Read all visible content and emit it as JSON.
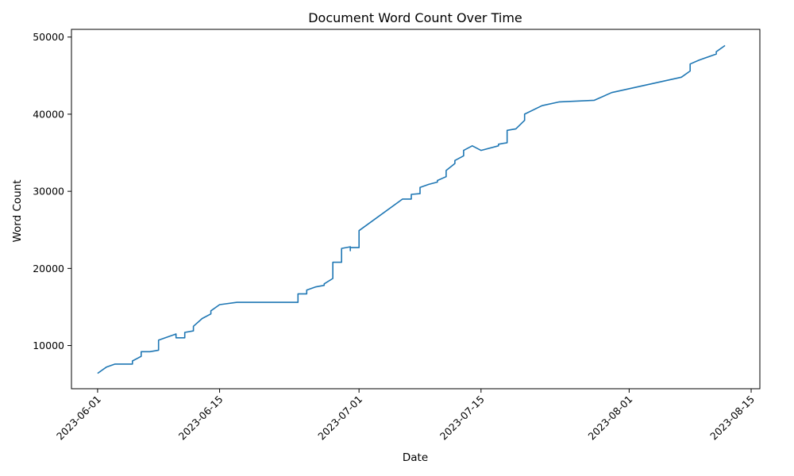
{
  "chart_data": {
    "type": "line",
    "title": "Document Word Count Over Time",
    "xlabel": "Date",
    "ylabel": "Word Count",
    "x_axis_type": "date",
    "xlim": [
      "2023-05-29",
      "2023-08-16"
    ],
    "ylim": [
      4400,
      51000
    ],
    "x_ticks": [
      "2023-06-01",
      "2023-06-15",
      "2023-07-01",
      "2023-07-15",
      "2023-08-01",
      "2023-08-15"
    ],
    "y_ticks": [
      10000,
      20000,
      30000,
      40000,
      50000
    ],
    "y_tick_labels": [
      "10000",
      "20000",
      "30000",
      "40000",
      "50000"
    ],
    "grid": false,
    "legend": "none",
    "series": [
      {
        "color": "#1f77b4",
        "x": [
          "2023-06-01",
          "2023-06-02",
          "2023-06-03",
          "2023-06-05",
          "2023-06-05",
          "2023-06-06",
          "2023-06-06",
          "2023-06-07",
          "2023-06-08",
          "2023-06-08",
          "2023-06-10",
          "2023-06-10",
          "2023-06-11",
          "2023-06-11",
          "2023-06-12",
          "2023-06-12",
          "2023-06-13",
          "2023-06-14",
          "2023-06-14",
          "2023-06-15",
          "2023-06-17",
          "2023-06-24",
          "2023-06-24",
          "2023-06-25",
          "2023-06-25",
          "2023-06-26",
          "2023-06-27",
          "2023-06-27",
          "2023-06-28",
          "2023-06-28",
          "2023-06-29",
          "2023-06-29",
          "2023-06-30",
          "2023-06-30",
          "2023-06-30",
          "2023-06-30",
          "2023-07-01",
          "2023-07-01",
          "2023-07-06",
          "2023-07-07",
          "2023-07-07",
          "2023-07-08",
          "2023-07-08",
          "2023-07-09",
          "2023-07-10",
          "2023-07-10",
          "2023-07-11",
          "2023-07-11",
          "2023-07-12",
          "2023-07-12",
          "2023-07-13",
          "2023-07-13",
          "2023-07-14",
          "2023-07-15",
          "2023-07-17",
          "2023-07-17",
          "2023-07-18",
          "2023-07-18",
          "2023-07-19",
          "2023-07-20",
          "2023-07-20",
          "2023-07-22",
          "2023-07-24",
          "2023-07-28",
          "2023-07-30",
          "2023-08-07",
          "2023-08-08",
          "2023-08-08",
          "2023-08-09",
          "2023-08-11",
          "2023-08-11",
          "2023-08-12"
        ],
        "values": [
          6400,
          7200,
          7600,
          7600,
          8000,
          8600,
          9200,
          9200,
          9400,
          10700,
          11500,
          11000,
          11000,
          11700,
          11900,
          12500,
          13500,
          14100,
          14500,
          15300,
          15600,
          15600,
          16700,
          16700,
          17200,
          17600,
          17800,
          18000,
          18700,
          20800,
          20800,
          22600,
          22800,
          22300,
          22700,
          22700,
          22700,
          24900,
          29000,
          29000,
          29600,
          29700,
          30500,
          30900,
          31200,
          31400,
          31900,
          32700,
          33600,
          34000,
          34600,
          35300,
          35900,
          35300,
          35900,
          36100,
          36300,
          37900,
          38100,
          39200,
          40000,
          41100,
          41600,
          41800,
          42800,
          44800,
          45600,
          46500,
          47000,
          47800,
          48100,
          48900
        ]
      }
    ]
  }
}
